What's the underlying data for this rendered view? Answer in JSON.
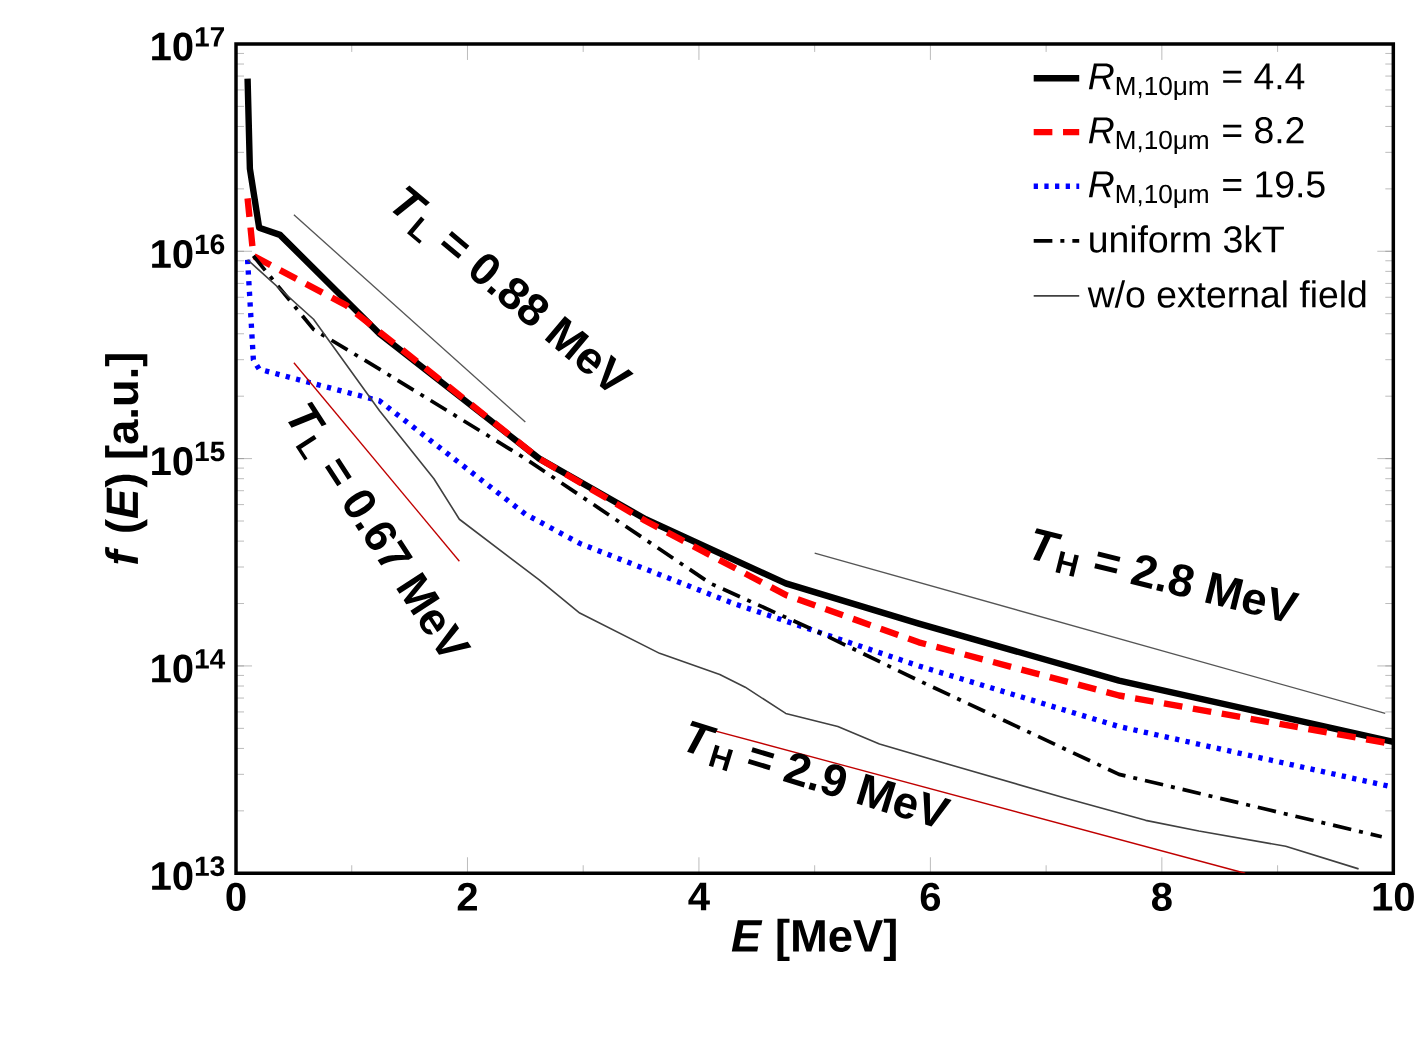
{
  "chart_data": {
    "type": "line",
    "xlabel": "*E* [MeV]",
    "ylabel": "*f* (*E*) [a.u.]",
    "log": "y",
    "xlim": [
      0,
      10
    ],
    "ylim": [
      10000000000000.0,
      1e+17
    ],
    "xticks": [
      0,
      2,
      4,
      6,
      8,
      10
    ],
    "yticks": [
      {
        "value": 10000000000000.0,
        "label": "10$^{13}$"
      },
      {
        "value": 100000000000000.0,
        "label": "10$^{14}$"
      },
      {
        "value": 1000000000000000.0,
        "label": "10$^{15}$"
      },
      {
        "value": 1e+16,
        "label": "10$^{16}$"
      },
      {
        "value": 1e+17,
        "label": "10$^{17}$"
      }
    ],
    "legend": "top right",
    "grid": false,
    "series": [
      {
        "name": "*R*$_{M,10μm}$ =  4.4",
        "color": "#000000",
        "line_style": "solid",
        "x": [
          0.1,
          0.12,
          0.2,
          0.38,
          1.24,
          2.62,
          3.54,
          4.75,
          5.9,
          7.63,
          10
        ],
        "values": [
          6.8e+16,
          2.5e+16,
          1.3e+16,
          1.2e+16,
          4000000000000000.0,
          1000000000000000.0,
          510000000000000.0,
          250000000000000.0,
          160000000000000.0,
          85000000000000.0,
          43000000000000.0
        ]
      },
      {
        "name": "*R*$_{M,10μm}$ = 8.2",
        "color": "#ff0000",
        "line_style": "dashed",
        "x": [
          0.1,
          0.15,
          0.95,
          2.62,
          3.54,
          4.75,
          5.9,
          7.63,
          10
        ],
        "values": [
          1.8e+16,
          9500000000000000.0,
          5500000000000000.0,
          1000000000000000.0,
          500000000000000.0,
          220000000000000.0,
          130000000000000.0,
          72000000000000.0,
          42000000000000.0
        ]
      },
      {
        "name": "*R*$_{M,10μm}$ = 19.5",
        "color": "#0000ff",
        "line_style": "dotted",
        "x": [
          0.1,
          0.15,
          0.2,
          0.67,
          1.24,
          1.7,
          2.5,
          2.97,
          4.3,
          5.9,
          7.63,
          10
        ],
        "values": [
          9100000000000000.0,
          3000000000000000.0,
          2700000000000000.0,
          2300000000000000.0,
          1900000000000000.0,
          1200000000000000.0,
          540000000000000.0,
          390000000000000.0,
          200000000000000.0,
          100000000000000.0,
          51000000000000.0,
          26000000000000.0
        ]
      },
      {
        "name": "uniform 3kT",
        "color": "#000000",
        "line_style": "dashdot",
        "x": [
          0.15,
          0.67,
          1.24,
          2.5,
          4.1,
          5.04,
          5.9,
          7.63,
          9.9
        ],
        "values": [
          9500000000000000.0,
          4200000000000000.0,
          2700000000000000.0,
          1000000000000000.0,
          250000000000000.0,
          145000000000000.0,
          85000000000000.0,
          30000000000000.0,
          15000000000000.0
        ]
      },
      {
        "name": "w/o external field",
        "color": "#404040",
        "line_style": "solid",
        "x": [
          0.1,
          0.67,
          1.24,
          1.71,
          1.93,
          2.62,
          2.97,
          3.66,
          4.18,
          4.4,
          4.75,
          5.2,
          5.56,
          6.2,
          7.17,
          7.86,
          8.32,
          9.07,
          9.7
        ],
        "values": [
          9100000000000000.0,
          4700000000000000.0,
          1700000000000000.0,
          800000000000000.0,
          510000000000000.0,
          260000000000000.0,
          180000000000000.0,
          115000000000000.0,
          91000000000000.0,
          79000000000000.0,
          59000000000000.0,
          51000000000000.0,
          42000000000000.0,
          33000000000000.0,
          23000000000000.0,
          18000000000000.0,
          16000000000000.0,
          13500000000000.0,
          10500000000000.0
        ]
      },
      {
        "color": "#555555",
        "line_style": "solid",
        "x": [
          0.5,
          2.5
        ],
        "values": [
          1.5e+16,
          1500000000000000.0
        ]
      },
      {
        "color": "#c00000",
        "line_style": "solid",
        "x": [
          0.5,
          1.93
        ],
        "values": [
          2900000000000000.0,
          320000000000000.0
        ]
      },
      {
        "color": "#555555",
        "line_style": "solid",
        "x": [
          5.0,
          9.93
        ],
        "values": [
          350000000000000.0,
          59000000000000.0
        ]
      },
      {
        "color": "#c00000",
        "line_style": "solid",
        "x": [
          4.0,
          8.72
        ],
        "values": [
          51000000000000.0,
          10000000000000.0
        ]
      }
    ],
    "annotations": [
      "*T*$_{L}$ = 0.88 MeV",
      "*T*$_{L}$ = 0.67 MeV",
      "*T*$_{H}$ = 2.8 MeV",
      "*T*$_{H}$ = 2.9 MeV"
    ]
  }
}
